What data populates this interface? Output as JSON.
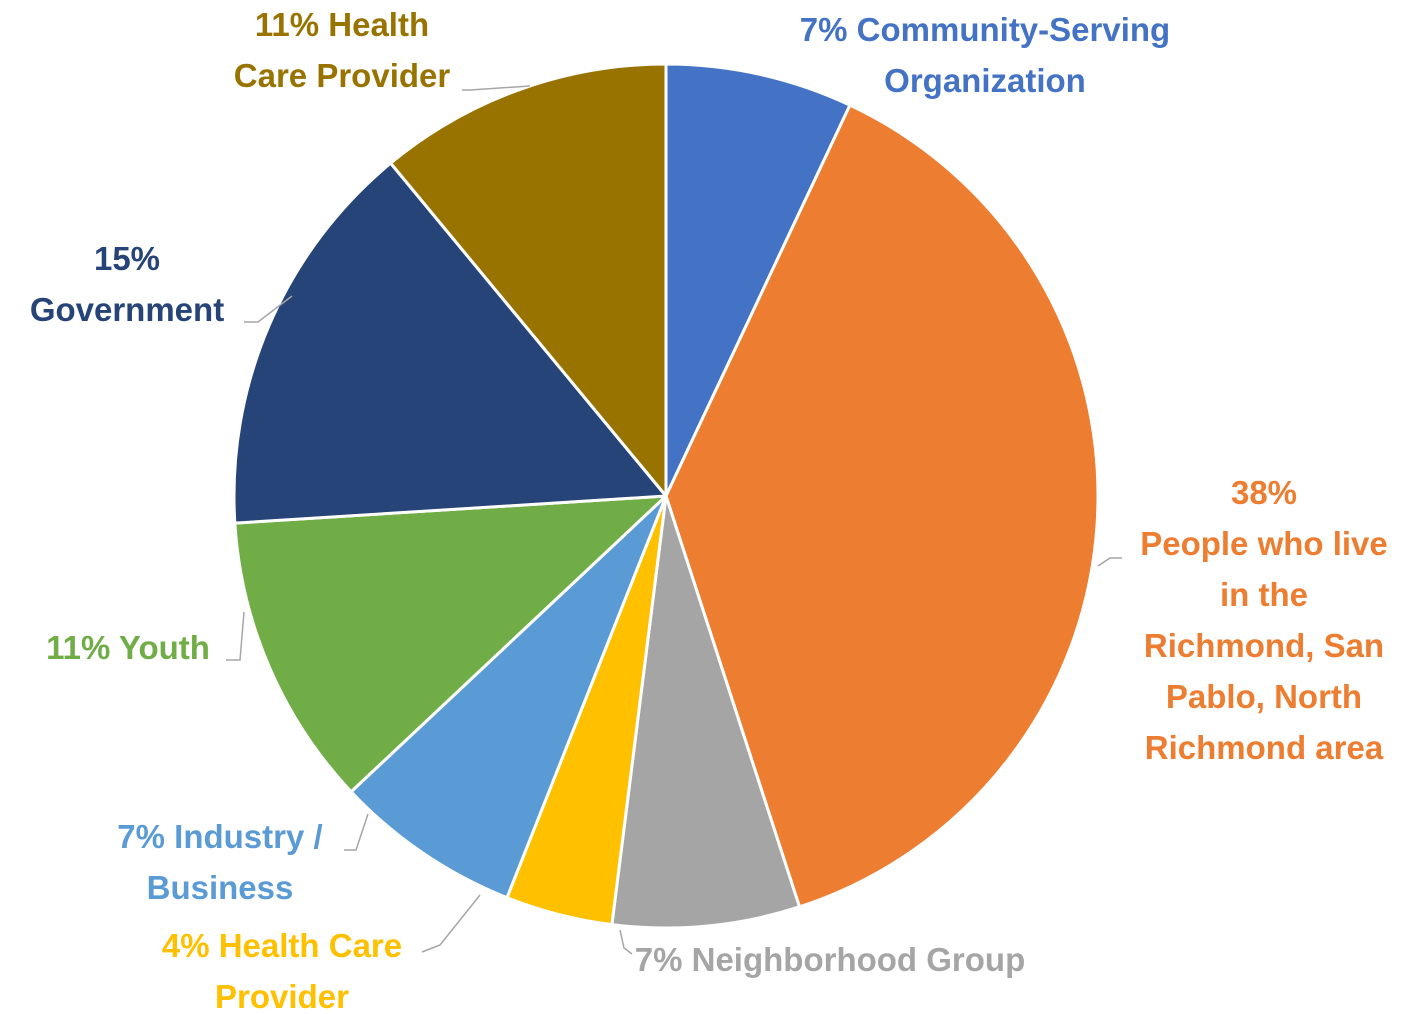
{
  "chart_data": {
    "type": "pie",
    "title": "",
    "start_angle_deg": 0,
    "direction": "clockwise",
    "slices": [
      {
        "name": "Community-Serving Organization",
        "value": 7,
        "color": "#4472C4",
        "label_lines": [
          "7% Community-Serving",
          "Organization"
        ]
      },
      {
        "name": "People who live in the Richmond, San Pablo, North Richmond area",
        "value": 38,
        "color": "#ED7D31",
        "label_lines": [
          "38%",
          "People who live",
          "in the",
          "Richmond, San",
          "Pablo, North",
          "Richmond area"
        ]
      },
      {
        "name": "Neighborhood Group",
        "value": 7,
        "color": "#A5A5A5",
        "label_lines": [
          "7% Neighborhood Group"
        ]
      },
      {
        "name": "Health Care Provider",
        "value": 4,
        "color": "#FFC000",
        "label_lines": [
          "4% Health Care",
          "Provider"
        ]
      },
      {
        "name": "Industry / Business",
        "value": 7,
        "color": "#5B9BD5",
        "label_lines": [
          "7% Industry /",
          "Business"
        ]
      },
      {
        "name": "Youth",
        "value": 11,
        "color": "#70AD47",
        "label_lines": [
          "11% Youth"
        ]
      },
      {
        "name": "Government",
        "value": 15,
        "color": "#264478",
        "label_lines": [
          "15%",
          "Government"
        ]
      },
      {
        "name": "Health Care Provider",
        "value": 11,
        "color": "#997300",
        "label_lines": [
          "11% Health",
          "Care Provider"
        ]
      }
    ]
  }
}
